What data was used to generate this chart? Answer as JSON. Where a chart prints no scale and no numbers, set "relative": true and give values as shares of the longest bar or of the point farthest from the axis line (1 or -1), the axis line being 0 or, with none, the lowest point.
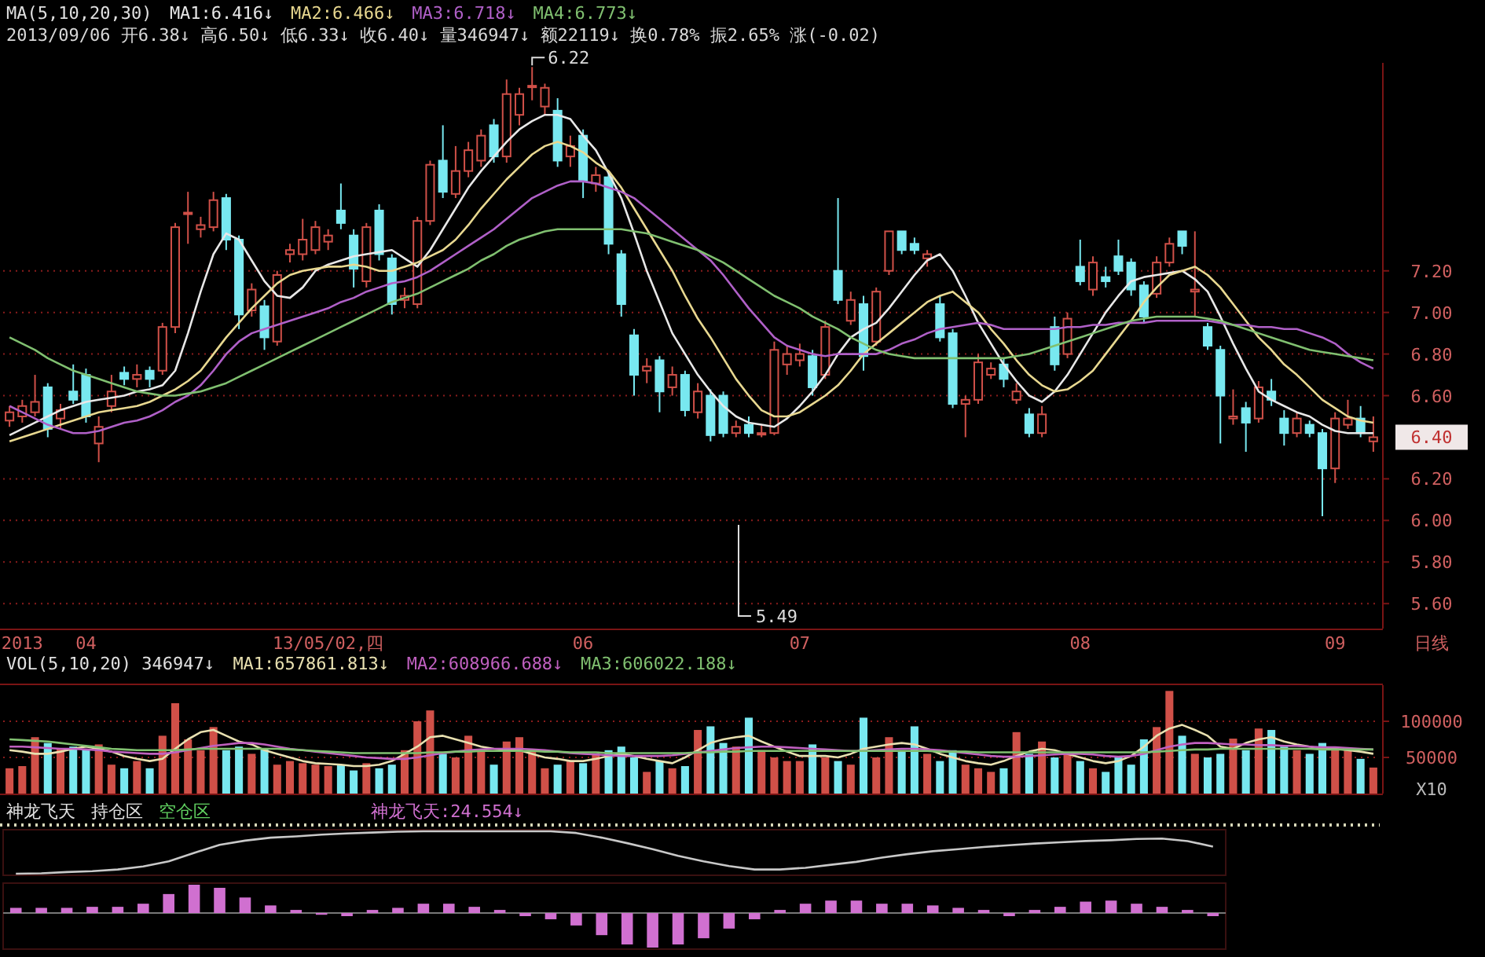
{
  "chart_data": [
    {
      "type": "candlestick",
      "title": "MA(5,10,20,30)",
      "subtitle": "2013/09/06 开6.38↓ 高6.50↓ 低6.33↓ 收6.40↓ 量346947↓ 额22119↓ 换0.78% 振2.65% 涨(-0.02)",
      "legend": "top left",
      "grid": "y",
      "categories": [
        null,
        "2013",
        null,
        null,
        null,
        null,
        "04",
        null,
        null,
        null,
        null,
        null,
        null,
        null,
        null,
        null,
        null,
        null,
        null,
        null,
        null,
        null,
        null,
        null,
        null,
        "13/05/02,四",
        null,
        null,
        null,
        null,
        null,
        null,
        null,
        null,
        null,
        null,
        null,
        null,
        null,
        null,
        null,
        null,
        null,
        null,
        null,
        "06",
        null,
        null,
        null,
        null,
        null,
        null,
        null,
        null,
        null,
        null,
        null,
        null,
        null,
        null,
        null,
        null,
        "07",
        null,
        null,
        null,
        null,
        null,
        null,
        null,
        null,
        null,
        null,
        null,
        null,
        null,
        null,
        null,
        null,
        null,
        null,
        null,
        null,
        null,
        "08",
        null,
        null,
        null,
        null,
        null,
        null,
        null,
        null,
        null,
        null,
        null,
        null,
        null,
        null,
        null,
        null,
        null,
        null,
        null,
        "09",
        null,
        null,
        null
      ],
      "ohlc": [
        [
          6.48,
          6.55,
          6.45,
          6.52
        ],
        [
          6.5,
          6.58,
          6.47,
          6.55
        ],
        [
          6.52,
          6.7,
          6.5,
          6.57
        ],
        [
          6.64,
          6.66,
          6.4,
          6.44
        ],
        [
          6.49,
          6.56,
          6.44,
          6.53
        ],
        [
          6.62,
          6.75,
          6.56,
          6.58
        ],
        [
          6.7,
          6.73,
          6.47,
          6.5
        ],
        [
          6.37,
          6.5,
          6.28,
          6.45
        ],
        [
          6.55,
          6.7,
          6.52,
          6.62
        ],
        [
          6.71,
          6.74,
          6.65,
          6.68
        ],
        [
          6.68,
          6.75,
          6.64,
          6.7
        ],
        [
          6.72,
          6.74,
          6.64,
          6.68
        ],
        [
          6.72,
          6.95,
          6.7,
          6.93
        ],
        [
          6.93,
          7.43,
          6.9,
          7.41
        ],
        [
          7.48,
          7.58,
          7.33,
          7.48
        ],
        [
          7.4,
          7.46,
          7.36,
          7.42
        ],
        [
          7.41,
          7.58,
          7.39,
          7.54
        ],
        [
          7.55,
          7.57,
          7.3,
          7.35
        ],
        [
          7.35,
          7.37,
          6.92,
          6.99
        ],
        [
          7.01,
          7.14,
          6.98,
          7.11
        ],
        [
          7.03,
          7.06,
          6.82,
          6.88
        ],
        [
          6.86,
          7.2,
          6.84,
          7.18
        ],
        [
          7.28,
          7.33,
          7.24,
          7.3
        ],
        [
          7.28,
          7.45,
          7.25,
          7.35
        ],
        [
          7.3,
          7.44,
          7.28,
          7.41
        ],
        [
          7.34,
          7.4,
          7.3,
          7.37
        ],
        [
          7.49,
          7.62,
          7.4,
          7.43
        ],
        [
          7.37,
          7.4,
          7.12,
          7.21
        ],
        [
          7.15,
          7.43,
          7.12,
          7.41
        ],
        [
          7.49,
          7.52,
          7.25,
          7.28
        ],
        [
          7.26,
          7.28,
          6.99,
          7.04
        ],
        [
          7.06,
          7.12,
          7.02,
          7.08
        ],
        [
          7.04,
          7.46,
          7.02,
          7.44
        ],
        [
          7.44,
          7.73,
          7.42,
          7.71
        ],
        [
          7.73,
          7.9,
          7.55,
          7.58
        ],
        [
          7.57,
          7.8,
          7.55,
          7.68
        ],
        [
          7.68,
          7.82,
          7.65,
          7.78
        ],
        [
          7.73,
          7.88,
          7.7,
          7.85
        ],
        [
          7.9,
          7.93,
          7.72,
          7.75
        ],
        [
          7.75,
          8.12,
          7.72,
          8.05
        ],
        [
          7.95,
          8.08,
          7.9,
          8.05
        ],
        [
          8.09,
          8.18,
          8.02,
          8.09
        ],
        [
          7.99,
          8.1,
          7.95,
          8.08
        ],
        [
          7.97,
          8.03,
          7.7,
          7.73
        ],
        [
          7.75,
          7.85,
          7.7,
          7.8
        ],
        [
          7.85,
          7.88,
          7.55,
          7.63
        ],
        [
          7.62,
          7.7,
          7.58,
          7.66
        ],
        [
          7.65,
          7.68,
          7.28,
          7.33
        ],
        [
          7.28,
          7.3,
          6.98,
          7.04
        ],
        [
          6.89,
          6.92,
          6.6,
          6.7
        ],
        [
          6.72,
          6.78,
          6.66,
          6.74
        ],
        [
          6.77,
          6.79,
          6.52,
          6.62
        ],
        [
          6.64,
          6.74,
          6.6,
          6.7
        ],
        [
          6.7,
          6.72,
          6.5,
          6.53
        ],
        [
          6.52,
          6.66,
          6.49,
          6.62
        ],
        [
          6.6,
          6.63,
          6.38,
          6.41
        ],
        [
          6.6,
          6.62,
          6.4,
          6.42
        ],
        [
          6.42,
          6.48,
          6.4,
          6.45
        ],
        [
          6.46,
          6.5,
          6.4,
          6.42
        ],
        [
          6.42,
          6.46,
          6.4,
          6.42
        ],
        [
          6.42,
          6.86,
          6.41,
          6.82
        ],
        [
          6.75,
          6.84,
          6.7,
          6.8
        ],
        [
          6.77,
          6.85,
          6.74,
          6.8
        ],
        [
          6.79,
          6.82,
          6.6,
          6.64
        ],
        [
          6.7,
          6.96,
          6.68,
          6.93
        ],
        [
          7.2,
          7.55,
          7.04,
          7.06
        ],
        [
          6.96,
          7.1,
          6.94,
          7.06
        ],
        [
          7.04,
          7.08,
          6.72,
          6.79
        ],
        [
          6.86,
          7.12,
          6.84,
          7.1
        ],
        [
          7.2,
          7.39,
          7.18,
          7.39
        ],
        [
          7.39,
          7.39,
          7.28,
          7.3
        ],
        [
          7.33,
          7.36,
          7.28,
          7.3
        ],
        [
          7.26,
          7.3,
          7.22,
          7.28
        ],
        [
          7.04,
          7.08,
          6.86,
          6.88
        ],
        [
          6.9,
          6.92,
          6.54,
          6.56
        ],
        [
          6.56,
          6.6,
          6.4,
          6.58
        ],
        [
          6.58,
          6.8,
          6.56,
          6.76
        ],
        [
          6.7,
          6.76,
          6.68,
          6.73
        ],
        [
          6.75,
          6.78,
          6.64,
          6.68
        ],
        [
          6.58,
          6.66,
          6.56,
          6.62
        ],
        [
          6.51,
          6.54,
          6.4,
          6.42
        ],
        [
          6.42,
          6.55,
          6.4,
          6.51
        ],
        [
          6.93,
          6.98,
          6.72,
          6.75
        ],
        [
          6.8,
          7.0,
          6.78,
          6.97
        ],
        [
          7.22,
          7.35,
          7.13,
          7.15
        ],
        [
          7.11,
          7.27,
          7.08,
          7.24
        ],
        [
          7.17,
          7.22,
          7.12,
          7.15
        ],
        [
          7.27,
          7.35,
          7.18,
          7.2
        ],
        [
          7.24,
          7.26,
          7.08,
          7.11
        ],
        [
          7.13,
          7.15,
          6.95,
          6.98
        ],
        [
          7.09,
          7.27,
          7.07,
          7.24
        ],
        [
          7.24,
          7.36,
          7.22,
          7.33
        ],
        [
          7.39,
          7.39,
          7.28,
          7.32
        ],
        [
          7.1,
          7.39,
          6.98,
          7.11
        ],
        [
          6.93,
          6.95,
          6.82,
          6.84
        ],
        [
          6.82,
          6.84,
          6.37,
          6.6
        ],
        [
          6.49,
          6.63,
          6.46,
          6.5
        ],
        [
          6.54,
          6.57,
          6.33,
          6.47
        ],
        [
          6.49,
          6.67,
          6.47,
          6.64
        ],
        [
          6.62,
          6.68,
          6.55,
          6.58
        ],
        [
          6.49,
          6.53,
          6.36,
          6.42
        ],
        [
          6.42,
          6.52,
          6.4,
          6.49
        ],
        [
          6.46,
          6.48,
          6.4,
          6.42
        ],
        [
          6.42,
          6.44,
          6.02,
          6.25
        ],
        [
          6.25,
          6.52,
          6.18,
          6.49
        ],
        [
          6.46,
          6.58,
          6.44,
          6.49
        ],
        [
          6.49,
          6.55,
          6.4,
          6.42
        ],
        [
          6.38,
          6.5,
          6.33,
          6.4
        ]
      ],
      "colors": [
        "#d05048",
        "#d05048",
        "#d05048",
        "#78e8f0",
        "#d05048",
        "#78e8f0",
        "#78e8f0",
        "#d05048",
        "#d05048",
        "#78e8f0",
        "#d05048",
        "#78e8f0",
        "#d05048",
        "#d05048",
        "#d05048",
        "#d05048",
        "#d05048",
        "#78e8f0",
        "#78e8f0",
        "#d05048",
        "#78e8f0",
        "#d05048",
        "#d05048",
        "#d05048",
        "#d05048",
        "#d05048",
        "#78e8f0",
        "#78e8f0",
        "#d05048",
        "#78e8f0",
        "#78e8f0",
        "#d05048",
        "#d05048",
        "#d05048",
        "#78e8f0",
        "#d05048",
        "#d05048",
        "#d05048",
        "#78e8f0",
        "#d05048",
        "#d05048",
        "#d05048",
        "#d05048",
        "#78e8f0",
        "#d05048",
        "#78e8f0",
        "#d05048",
        "#78e8f0",
        "#78e8f0",
        "#78e8f0",
        "#d05048",
        "#78e8f0",
        "#d05048",
        "#78e8f0",
        "#d05048",
        "#78e8f0",
        "#78e8f0",
        "#d05048",
        "#78e8f0",
        "#d05048",
        "#d05048",
        "#d05048",
        "#d05048",
        "#78e8f0",
        "#d05048",
        "#78e8f0",
        "#d05048",
        "#78e8f0",
        "#d05048",
        "#d05048",
        "#78e8f0",
        "#78e8f0",
        "#d05048",
        "#78e8f0",
        "#78e8f0",
        "#d05048",
        "#d05048",
        "#d05048",
        "#78e8f0",
        "#d05048",
        "#78e8f0",
        "#d05048",
        "#78e8f0",
        "#d05048",
        "#78e8f0",
        "#d05048",
        "#78e8f0",
        "#78e8f0",
        "#78e8f0",
        "#78e8f0",
        "#d05048",
        "#d05048",
        "#78e8f0",
        "#d05048",
        "#78e8f0",
        "#78e8f0",
        "#d05048",
        "#78e8f0",
        "#d05048",
        "#78e8f0",
        "#78e8f0",
        "#d05048",
        "#78e8f0",
        "#78e8f0",
        "#d05048",
        "#d05048",
        "#78e8f0",
        "#d05048"
      ],
      "series": [
        {
          "type": "line",
          "name": "MA1:6.416↓",
          "color": "#e8e8e8",
          "values": [
            6.41,
            6.44,
            6.47,
            6.5,
            6.53,
            6.55,
            6.57,
            6.58,
            6.59,
            6.6,
            6.62,
            6.63,
            6.65,
            6.72,
            6.9,
            7.1,
            7.28,
            7.38,
            7.35,
            7.25,
            7.15,
            7.08,
            7.07,
            7.12,
            7.2,
            7.23,
            7.25,
            7.27,
            7.28,
            7.29,
            7.3,
            7.26,
            7.22,
            7.3,
            7.4,
            7.5,
            7.6,
            7.68,
            7.75,
            7.82,
            7.88,
            7.92,
            7.95,
            7.95,
            7.93,
            7.85,
            7.78,
            7.67,
            7.55,
            7.38,
            7.2,
            7.05,
            6.9,
            6.8,
            6.7,
            6.62,
            6.55,
            6.5,
            6.47,
            6.46,
            6.45,
            6.49,
            6.55,
            6.62,
            6.7,
            6.8,
            6.88,
            6.92,
            6.95,
            7.02,
            7.1,
            7.18,
            7.25,
            7.28,
            7.2,
            7.08,
            6.95,
            6.85,
            6.75,
            6.67,
            6.6,
            6.57,
            6.62,
            6.7,
            6.8,
            6.9,
            7.0,
            7.08,
            7.15,
            7.17,
            7.18,
            7.19,
            7.2,
            7.16,
            7.1,
            6.98,
            6.85,
            6.73,
            6.62,
            6.58,
            6.55,
            6.52,
            6.5,
            6.46,
            6.43,
            6.42,
            6.42,
            6.42
          ]
        },
        {
          "type": "line",
          "name": "MA2:6.466↓",
          "color": "#e8d890",
          "values": [
            6.38,
            6.4,
            6.42,
            6.44,
            6.46,
            6.48,
            6.5,
            6.52,
            6.53,
            6.54,
            6.55,
            6.57,
            6.6,
            6.63,
            6.67,
            6.72,
            6.8,
            6.88,
            6.95,
            7.02,
            7.08,
            7.14,
            7.18,
            7.2,
            7.21,
            7.22,
            7.22,
            7.23,
            7.22,
            7.2,
            7.2,
            7.22,
            7.24,
            7.27,
            7.3,
            7.35,
            7.42,
            7.5,
            7.57,
            7.64,
            7.7,
            7.76,
            7.8,
            7.82,
            7.8,
            7.77,
            7.72,
            7.68,
            7.6,
            7.5,
            7.4,
            7.3,
            7.2,
            7.08,
            6.97,
            6.88,
            6.78,
            6.68,
            6.6,
            6.53,
            6.5,
            6.5,
            6.52,
            6.56,
            6.6,
            6.65,
            6.72,
            6.8,
            6.85,
            6.9,
            6.95,
            7.0,
            7.05,
            7.08,
            7.1,
            7.05,
            7.0,
            6.92,
            6.85,
            6.77,
            6.7,
            6.65,
            6.62,
            6.63,
            6.67,
            6.72,
            6.8,
            6.88,
            6.96,
            7.05,
            7.12,
            7.18,
            7.2,
            7.22,
            7.18,
            7.12,
            7.04,
            6.96,
            6.88,
            6.82,
            6.75,
            6.7,
            6.64,
            6.58,
            6.54,
            6.5,
            6.48,
            6.47
          ]
        },
        {
          "type": "line",
          "name": "MA3:6.718↓",
          "color": "#b060c8",
          "values": [
            6.55,
            6.52,
            6.49,
            6.46,
            6.44,
            6.42,
            6.42,
            6.43,
            6.45,
            6.47,
            6.48,
            6.5,
            6.53,
            6.57,
            6.6,
            6.65,
            6.72,
            6.8,
            6.86,
            6.9,
            6.92,
            6.94,
            6.96,
            6.98,
            7.0,
            7.02,
            7.05,
            7.07,
            7.1,
            7.12,
            7.14,
            7.15,
            7.17,
            7.2,
            7.24,
            7.28,
            7.32,
            7.36,
            7.4,
            7.45,
            7.5,
            7.55,
            7.58,
            7.61,
            7.63,
            7.63,
            7.62,
            7.6,
            7.58,
            7.55,
            7.5,
            7.45,
            7.4,
            7.35,
            7.3,
            7.25,
            7.18,
            7.1,
            7.02,
            6.95,
            6.88,
            6.84,
            6.82,
            6.8,
            6.79,
            6.8,
            6.8,
            6.8,
            6.8,
            6.82,
            6.85,
            6.87,
            6.9,
            6.92,
            6.93,
            6.94,
            6.95,
            6.94,
            6.92,
            6.92,
            6.92,
            6.92,
            6.92,
            6.93,
            6.93,
            6.94,
            6.94,
            6.95,
            6.95,
            6.95,
            6.96,
            6.96,
            6.96,
            6.96,
            6.96,
            6.95,
            6.94,
            6.94,
            6.93,
            6.93,
            6.92,
            6.92,
            6.9,
            6.88,
            6.85,
            6.8,
            6.76,
            6.73
          ]
        },
        {
          "type": "line",
          "name": "MA4:6.773↓",
          "color": "#80c070",
          "values": [
            6.88,
            6.85,
            6.82,
            6.78,
            6.75,
            6.72,
            6.7,
            6.68,
            6.66,
            6.64,
            6.62,
            6.61,
            6.6,
            6.6,
            6.61,
            6.62,
            6.64,
            6.66,
            6.69,
            6.72,
            6.75,
            6.78,
            6.81,
            6.84,
            6.87,
            6.9,
            6.93,
            6.96,
            6.99,
            7.02,
            7.05,
            7.07,
            7.09,
            7.12,
            7.15,
            7.18,
            7.21,
            7.25,
            7.28,
            7.32,
            7.35,
            7.37,
            7.39,
            7.4,
            7.4,
            7.4,
            7.4,
            7.4,
            7.4,
            7.39,
            7.38,
            7.36,
            7.34,
            7.32,
            7.3,
            7.27,
            7.24,
            7.2,
            7.16,
            7.12,
            7.08,
            7.05,
            7.02,
            6.98,
            6.95,
            6.92,
            6.88,
            6.85,
            6.82,
            6.8,
            6.79,
            6.78,
            6.78,
            6.78,
            6.78,
            6.78,
            6.78,
            6.78,
            6.78,
            6.79,
            6.8,
            6.82,
            6.84,
            6.86,
            6.88,
            6.9,
            6.92,
            6.94,
            6.96,
            6.97,
            6.98,
            6.98,
            6.98,
            6.98,
            6.97,
            6.96,
            6.94,
            6.92,
            6.9,
            6.88,
            6.86,
            6.84,
            6.82,
            6.81,
            6.8,
            6.79,
            6.78,
            6.77
          ]
        }
      ],
      "ylim": [
        5.48,
        8.2
      ],
      "yticks": [
        {
          "value": 5.6,
          "label": "5.60"
        },
        {
          "value": 5.8,
          "label": "5.80"
        },
        {
          "value": 6.0,
          "label": "6.00"
        },
        {
          "value": 6.2,
          "label": "6.20"
        },
        {
          "value": 6.6,
          "label": "6.60"
        },
        {
          "value": 6.8,
          "label": "6.80"
        },
        {
          "value": 7.0,
          "label": "7.00"
        },
        {
          "value": 7.2,
          "label": "7.20"
        }
      ],
      "annotations": [
        "6.22",
        "5.49",
        "6.40",
        "日线"
      ]
    },
    {
      "type": "bar",
      "title": "VOL(5,10,20) 346947↓",
      "legend": "top left",
      "grid": "y",
      "tick_labels": "y",
      "categories": [
        null,
        null,
        null,
        null,
        null,
        null,
        null,
        null,
        null,
        null,
        null,
        null,
        null,
        null,
        null,
        null,
        null,
        null,
        null,
        null,
        null,
        null,
        null,
        null,
        null,
        null,
        null,
        null,
        null,
        null,
        null,
        null,
        null,
        null,
        null,
        null,
        null,
        null,
        null,
        null,
        null,
        null,
        null,
        null,
        null,
        null,
        null,
        null,
        null,
        null,
        null,
        null,
        null,
        null,
        null,
        null,
        null,
        null,
        null,
        null,
        null,
        null,
        null,
        null,
        null,
        null,
        null,
        null,
        null,
        null,
        null,
        null,
        null,
        null,
        null,
        null,
        null,
        null,
        null,
        null,
        null,
        null,
        null,
        null,
        null,
        null,
        null,
        null,
        null,
        null,
        null,
        null,
        null,
        null,
        null,
        null,
        null,
        null,
        null,
        null,
        null,
        null,
        null,
        null,
        null,
        null,
        null,
        null
      ],
      "values": [
        35000,
        38000,
        78000,
        70000,
        62000,
        65000,
        60000,
        68000,
        40000,
        35000,
        45000,
        35000,
        80000,
        125000,
        75000,
        60000,
        92000,
        60000,
        65000,
        55000,
        62000,
        40000,
        45000,
        42000,
        40000,
        38000,
        40000,
        32000,
        42000,
        35000,
        40000,
        60000,
        100000,
        115000,
        55000,
        50000,
        80000,
        60000,
        40000,
        72000,
        78000,
        58000,
        35000,
        40000,
        45000,
        42000,
        55000,
        60000,
        65000,
        50000,
        30000,
        45000,
        35000,
        38000,
        88000,
        93000,
        70000,
        65000,
        105000,
        60000,
        50000,
        45000,
        45000,
        68000,
        50000,
        45000,
        40000,
        105000,
        50000,
        78000,
        60000,
        93000,
        55000,
        45000,
        60000,
        40000,
        35000,
        30000,
        35000,
        85000,
        55000,
        72000,
        50000,
        55000,
        45000,
        35000,
        30000,
        50000,
        40000,
        75000,
        92000,
        142000,
        80000,
        55000,
        50000,
        55000,
        76000,
        60000,
        90000,
        88000,
        65000,
        60000,
        55000,
        70000,
        65000,
        60000,
        48000,
        36000
      ],
      "colors": [
        "#d05048",
        "#d05048",
        "#d05048",
        "#78e8f0",
        "#d05048",
        "#78e8f0",
        "#78e8f0",
        "#d05048",
        "#d05048",
        "#78e8f0",
        "#d05048",
        "#78e8f0",
        "#d05048",
        "#d05048",
        "#d05048",
        "#d05048",
        "#d05048",
        "#78e8f0",
        "#78e8f0",
        "#d05048",
        "#78e8f0",
        "#d05048",
        "#d05048",
        "#d05048",
        "#d05048",
        "#d05048",
        "#78e8f0",
        "#78e8f0",
        "#d05048",
        "#78e8f0",
        "#78e8f0",
        "#d05048",
        "#d05048",
        "#d05048",
        "#78e8f0",
        "#d05048",
        "#d05048",
        "#d05048",
        "#78e8f0",
        "#d05048",
        "#d05048",
        "#d05048",
        "#d05048",
        "#78e8f0",
        "#d05048",
        "#78e8f0",
        "#d05048",
        "#78e8f0",
        "#78e8f0",
        "#78e8f0",
        "#d05048",
        "#78e8f0",
        "#d05048",
        "#78e8f0",
        "#d05048",
        "#78e8f0",
        "#78e8f0",
        "#d05048",
        "#78e8f0",
        "#d05048",
        "#d05048",
        "#d05048",
        "#d05048",
        "#78e8f0",
        "#d05048",
        "#78e8f0",
        "#d05048",
        "#78e8f0",
        "#d05048",
        "#d05048",
        "#78e8f0",
        "#78e8f0",
        "#d05048",
        "#78e8f0",
        "#78e8f0",
        "#d05048",
        "#d05048",
        "#d05048",
        "#78e8f0",
        "#d05048",
        "#78e8f0",
        "#d05048",
        "#78e8f0",
        "#d05048",
        "#78e8f0",
        "#d05048",
        "#78e8f0",
        "#78e8f0",
        "#78e8f0",
        "#78e8f0",
        "#d05048",
        "#d05048",
        "#78e8f0",
        "#d05048",
        "#78e8f0",
        "#78e8f0",
        "#d05048",
        "#78e8f0",
        "#d05048",
        "#78e8f0",
        "#78e8f0",
        "#d05048",
        "#78e8f0",
        "#78e8f0",
        "#d05048",
        "#d05048",
        "#78e8f0",
        "#d05048"
      ],
      "series": [
        {
          "type": "line",
          "name": "MA1:657861.813↓",
          "color": "#e8e0b0",
          "values": [
            60000,
            58000,
            55000,
            55000,
            58000,
            62000,
            65000,
            62000,
            58000,
            52000,
            48000,
            45000,
            48000,
            62000,
            75000,
            85000,
            88000,
            80000,
            72000,
            68000,
            60000,
            55000,
            50000,
            45000,
            42000,
            41000,
            40000,
            38000,
            38000,
            40000,
            45000,
            55000,
            65000,
            78000,
            80000,
            75000,
            70000,
            65000,
            62000,
            60000,
            60000,
            55000,
            50000,
            48000,
            45000,
            45000,
            48000,
            52000,
            55000,
            52000,
            48000,
            45000,
            42000,
            50000,
            60000,
            70000,
            75000,
            78000,
            80000,
            72000,
            65000,
            58000,
            52000,
            52000,
            52000,
            50000,
            55000,
            62000,
            65000,
            68000,
            70000,
            68000,
            62000,
            55000,
            50000,
            45000,
            42000,
            40000,
            45000,
            52000,
            58000,
            62000,
            60000,
            55000,
            50000,
            45000,
            42000,
            45000,
            52000,
            65000,
            80000,
            90000,
            95000,
            88000,
            80000,
            65000,
            62000,
            70000,
            75000,
            78000,
            72000,
            68000,
            65000,
            62000,
            62000,
            60000,
            58000,
            55000
          ]
        },
        {
          "type": "line",
          "name": "MA2:608966.688↓",
          "color": "#c060c0",
          "values": [
            65000,
            65000,
            64000,
            63000,
            62000,
            62000,
            61000,
            60000,
            58000,
            57000,
            56000,
            55000,
            55000,
            57000,
            60000,
            63000,
            66000,
            68000,
            70000,
            70000,
            68000,
            65000,
            62000,
            60000,
            58000,
            56000,
            54000,
            52000,
            50000,
            49000,
            48000,
            48000,
            50000,
            53000,
            56000,
            58000,
            60000,
            61000,
            62000,
            62000,
            62000,
            61000,
            60000,
            58000,
            56000,
            55000,
            54000,
            53000,
            52000,
            52000,
            52000,
            52000,
            53000,
            55000,
            57000,
            59000,
            61000,
            63000,
            64000,
            65000,
            65000,
            64000,
            63000,
            62000,
            61000,
            60000,
            59000,
            59000,
            60000,
            61000,
            62000,
            62000,
            61000,
            60000,
            58000,
            56000,
            54000,
            52000,
            51000,
            51000,
            52000,
            53000,
            54000,
            55000,
            55000,
            54000,
            52000,
            51000,
            52000,
            55000,
            60000,
            65000,
            68000,
            70000,
            70000,
            69000,
            68000,
            68000,
            67000,
            67000,
            66000,
            66000,
            65000,
            64000,
            64000,
            63000,
            62000,
            61000
          ]
        },
        {
          "type": "line",
          "name": "MA3:606022.188↓",
          "color": "#80c070",
          "values": [
            75000,
            74000,
            73000,
            72000,
            70000,
            68000,
            66000,
            64000,
            62000,
            61000,
            60000,
            60000,
            60000,
            60000,
            61000,
            62000,
            62000,
            62000,
            62000,
            62000,
            62000,
            62000,
            61000,
            60000,
            59000,
            58000,
            57000,
            56000,
            56000,
            56000,
            56000,
            56000,
            56000,
            57000,
            57000,
            58000,
            58000,
            59000,
            59000,
            59000,
            59000,
            59000,
            58000,
            58000,
            57000,
            57000,
            57000,
            56000,
            56000,
            56000,
            56000,
            56000,
            56000,
            56000,
            57000,
            57000,
            58000,
            58000,
            59000,
            59000,
            59000,
            59000,
            59000,
            59000,
            59000,
            59000,
            59000,
            59000,
            59000,
            59000,
            59000,
            59000,
            59000,
            58000,
            58000,
            58000,
            57000,
            57000,
            57000,
            57000,
            57000,
            57000,
            57000,
            57000,
            57000,
            57000,
            57000,
            57000,
            57000,
            57000,
            58000,
            59000,
            60000,
            61000,
            61000,
            62000,
            62000,
            62000,
            62000,
            62000,
            62000,
            62000,
            62000,
            61000,
            61000,
            61000,
            61000,
            61000
          ]
        }
      ],
      "ylim": [
        0,
        150000
      ],
      "yticks": [
        50000,
        100000
      ],
      "annotations": [
        "X10"
      ]
    },
    {
      "type": "line",
      "title": "神龙飞天",
      "relative": true,
      "tick_labels": false,
      "annotations": [
        "持仓区",
        "空仓区"
      ],
      "categories": [
        null,
        null,
        null,
        null,
        null,
        null,
        null,
        null,
        null,
        null,
        null,
        null,
        null,
        null,
        null,
        null,
        null,
        null,
        null,
        null,
        null,
        null,
        null,
        null,
        null,
        null,
        null,
        null,
        null,
        null,
        null,
        null,
        null,
        null,
        null,
        null,
        null,
        null,
        null,
        null,
        null,
        null,
        null,
        null,
        null,
        null,
        null,
        null
      ],
      "series": [
        {
          "color": "#c8c8c8",
          "values": [
            0,
            0.01,
            0.04,
            0.06,
            0.1,
            0.17,
            0.29,
            0.49,
            0.68,
            0.78,
            0.85,
            0.88,
            0.92,
            0.95,
            0.97,
            0.99,
            1,
            1,
            1,
            1,
            1,
            1,
            0.96,
            0.85,
            0.72,
            0.58,
            0.42,
            0.29,
            0.18,
            0.1,
            0.1,
            0.14,
            0.21,
            0.28,
            0.38,
            0.46,
            0.53,
            0.58,
            0.63,
            0.67,
            0.71,
            0.74,
            0.77,
            0.79,
            0.82,
            0.83,
            0.77,
            0.64
          ]
        }
      ]
    },
    {
      "type": "bar",
      "relative": true,
      "legend": "top left",
      "tick_labels": false,
      "categories": [
        null,
        null,
        null,
        null,
        null,
        null,
        null,
        null,
        null,
        null,
        null,
        null,
        null,
        null,
        null,
        null,
        null,
        null,
        null,
        null,
        null,
        null,
        null,
        null,
        null,
        null,
        null,
        null,
        null,
        null,
        null,
        null,
        null,
        null,
        null,
        null,
        null,
        null,
        null,
        null,
        null,
        null,
        null,
        null,
        null,
        null,
        null,
        null
      ],
      "series": [
        {
          "name": "神龙飞天:24.554↓",
          "color": "#d070d0",
          "values": [
            0.15,
            0.15,
            0.15,
            0.18,
            0.18,
            0.27,
            0.55,
            0.82,
            0.73,
            0.45,
            0.22,
            0.09,
            -0.05,
            -0.09,
            0.09,
            0.15,
            0.27,
            0.27,
            0.18,
            0.09,
            -0.09,
            -0.18,
            -0.36,
            -0.64,
            -0.91,
            -1,
            -0.91,
            -0.73,
            -0.45,
            -0.18,
            0.09,
            0.27,
            0.36,
            0.36,
            0.27,
            0.27,
            0.22,
            0.15,
            0.09,
            -0.09,
            0.09,
            0.18,
            0.33,
            0.36,
            0.27,
            0.18,
            0.09,
            -0.09
          ]
        }
      ]
    }
  ]
}
